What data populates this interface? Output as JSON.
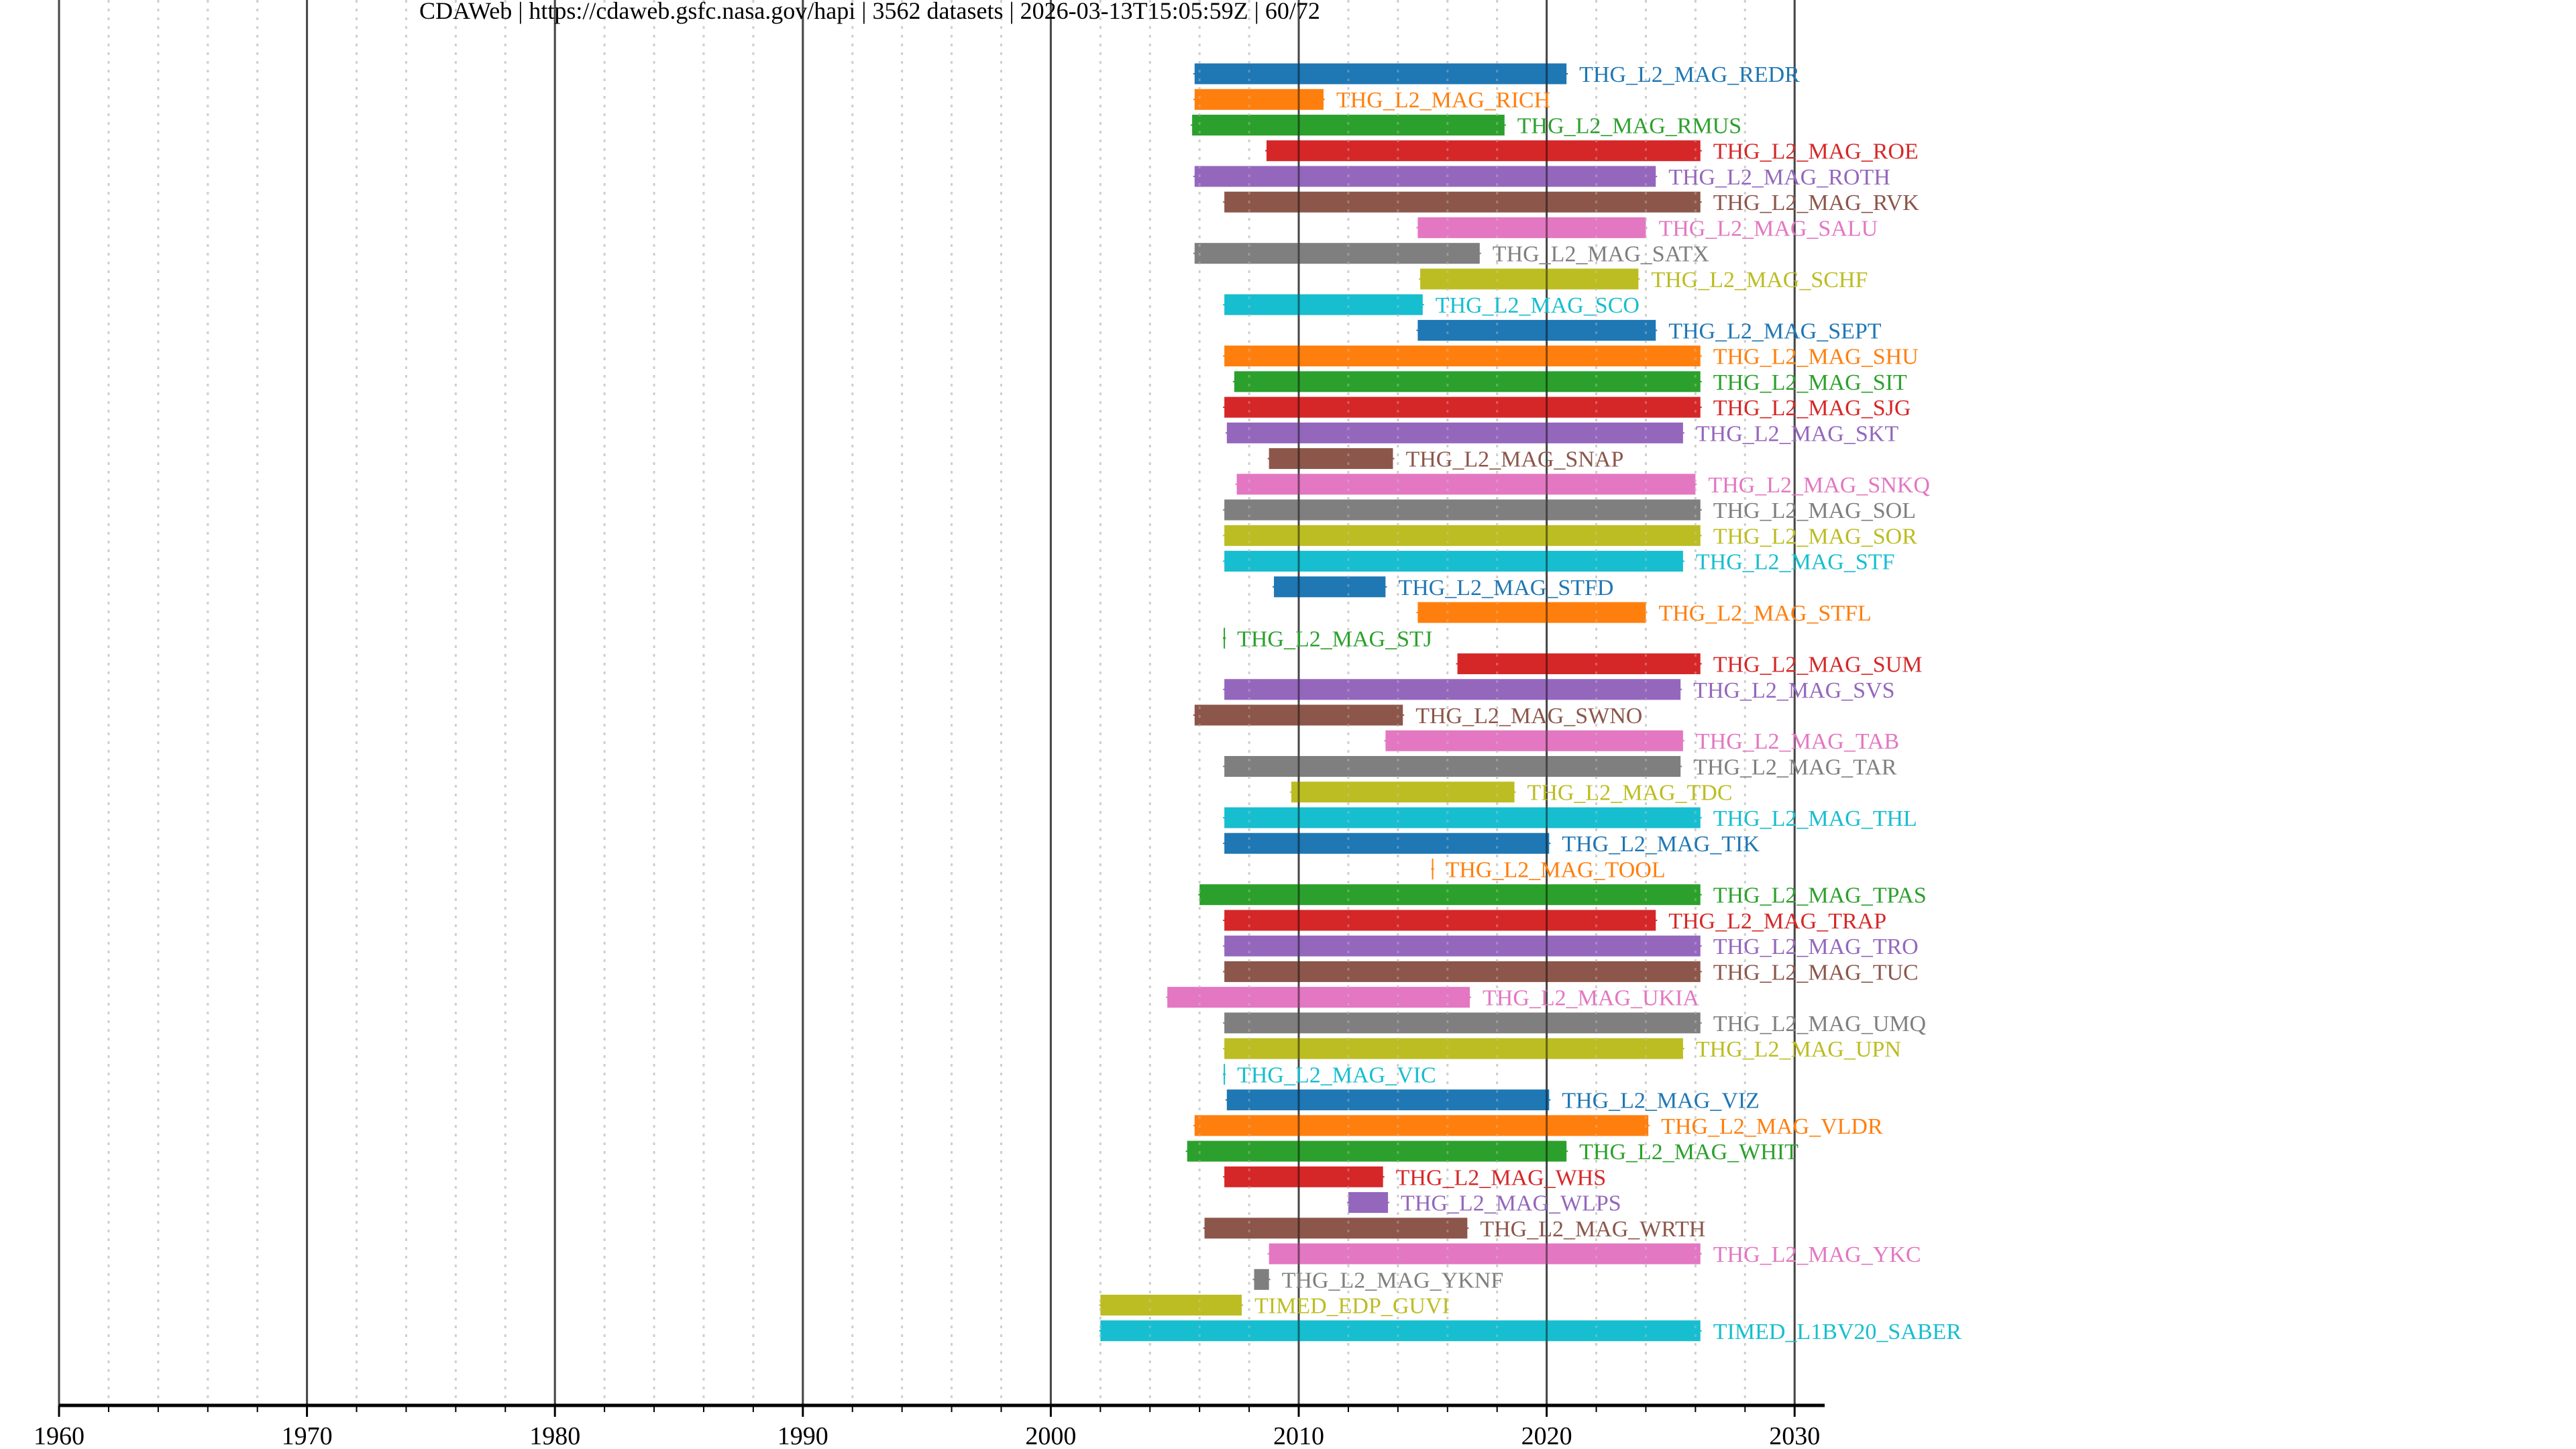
{
  "chart_data": {
    "type": "timeline",
    "title": "CDAWeb | https://cdaweb.gsfc.nasa.gov/hapi | 3562 datasets | 2026-03-13T15:05:59Z | 60/72",
    "xlabel": "",
    "ylabel": "",
    "xlim": [
      1960,
      2031
    ],
    "x_ticks": [
      1960,
      1970,
      1980,
      1990,
      2000,
      2010,
      2020,
      2030
    ],
    "x_tick_labels": [
      "1960",
      "1970",
      "1980",
      "1990",
      "2000",
      "2010",
      "2020",
      "2030"
    ],
    "minor_tick_step": 2,
    "grid": true,
    "palette": [
      "#1f77b4",
      "#ff7f0e",
      "#2ca02c",
      "#d62728",
      "#9467bd",
      "#8c564b",
      "#e377c2",
      "#7f7f7f",
      "#bcbd22",
      "#17becf"
    ],
    "series": [
      {
        "name": "THG_L2_MAG_REDR",
        "start": 2005.8,
        "end": 2020.8
      },
      {
        "name": "THG_L2_MAG_RICH",
        "start": 2005.8,
        "end": 2011.0
      },
      {
        "name": "THG_L2_MAG_RMUS",
        "start": 2005.7,
        "end": 2018.3
      },
      {
        "name": "THG_L2_MAG_ROE",
        "start": 2008.7,
        "end": 2026.2
      },
      {
        "name": "THG_L2_MAG_ROTH",
        "start": 2005.8,
        "end": 2024.4
      },
      {
        "name": "THG_L2_MAG_RVK",
        "start": 2007.0,
        "end": 2026.2
      },
      {
        "name": "THG_L2_MAG_SALU",
        "start": 2014.8,
        "end": 2024.0
      },
      {
        "name": "THG_L2_MAG_SATX",
        "start": 2005.8,
        "end": 2017.3
      },
      {
        "name": "THG_L2_MAG_SCHF",
        "start": 2014.9,
        "end": 2023.7
      },
      {
        "name": "THG_L2_MAG_SCO",
        "start": 2007.0,
        "end": 2015.0
      },
      {
        "name": "THG_L2_MAG_SEPT",
        "start": 2014.8,
        "end": 2024.4
      },
      {
        "name": "THG_L2_MAG_SHU",
        "start": 2007.0,
        "end": 2026.2
      },
      {
        "name": "THG_L2_MAG_SIT",
        "start": 2007.4,
        "end": 2026.2
      },
      {
        "name": "THG_L2_MAG_SJG",
        "start": 2007.0,
        "end": 2026.2
      },
      {
        "name": "THG_L2_MAG_SKT",
        "start": 2007.1,
        "end": 2025.5
      },
      {
        "name": "THG_L2_MAG_SNAP",
        "start": 2008.8,
        "end": 2013.8
      },
      {
        "name": "THG_L2_MAG_SNKQ",
        "start": 2007.5,
        "end": 2026.0
      },
      {
        "name": "THG_L2_MAG_SOL",
        "start": 2007.0,
        "end": 2026.2
      },
      {
        "name": "THG_L2_MAG_SOR",
        "start": 2007.0,
        "end": 2026.2
      },
      {
        "name": "THG_L2_MAG_STF",
        "start": 2007.0,
        "end": 2025.5
      },
      {
        "name": "THG_L2_MAG_STFD",
        "start": 2009.0,
        "end": 2013.5
      },
      {
        "name": "THG_L2_MAG_STFL",
        "start": 2014.8,
        "end": 2024.0
      },
      {
        "name": "THG_L2_MAG_STJ",
        "start": 2007.0,
        "end": 2007.0
      },
      {
        "name": "THG_L2_MAG_SUM",
        "start": 2016.4,
        "end": 2026.2
      },
      {
        "name": "THG_L2_MAG_SVS",
        "start": 2007.0,
        "end": 2025.4
      },
      {
        "name": "THG_L2_MAG_SWNO",
        "start": 2005.8,
        "end": 2014.2
      },
      {
        "name": "THG_L2_MAG_TAB",
        "start": 2013.5,
        "end": 2025.5
      },
      {
        "name": "THG_L2_MAG_TAR",
        "start": 2007.0,
        "end": 2025.4
      },
      {
        "name": "THG_L2_MAG_TDC",
        "start": 2009.7,
        "end": 2018.7
      },
      {
        "name": "THG_L2_MAG_THL",
        "start": 2007.0,
        "end": 2026.2
      },
      {
        "name": "THG_L2_MAG_TIK",
        "start": 2007.0,
        "end": 2020.1
      },
      {
        "name": "THG_L2_MAG_TOOL",
        "start": 2015.4,
        "end": 2015.4
      },
      {
        "name": "THG_L2_MAG_TPAS",
        "start": 2006.0,
        "end": 2026.2
      },
      {
        "name": "THG_L2_MAG_TRAP",
        "start": 2007.0,
        "end": 2024.4
      },
      {
        "name": "THG_L2_MAG_TRO",
        "start": 2007.0,
        "end": 2026.2
      },
      {
        "name": "THG_L2_MAG_TUC",
        "start": 2007.0,
        "end": 2026.2
      },
      {
        "name": "THG_L2_MAG_UKIA",
        "start": 2004.7,
        "end": 2016.9
      },
      {
        "name": "THG_L2_MAG_UMQ",
        "start": 2007.0,
        "end": 2026.2
      },
      {
        "name": "THG_L2_MAG_UPN",
        "start": 2007.0,
        "end": 2025.5
      },
      {
        "name": "THG_L2_MAG_VIC",
        "start": 2007.0,
        "end": 2007.0
      },
      {
        "name": "THG_L2_MAG_VIZ",
        "start": 2007.1,
        "end": 2020.1
      },
      {
        "name": "THG_L2_MAG_VLDR",
        "start": 2005.8,
        "end": 2024.1
      },
      {
        "name": "THG_L2_MAG_WHIT",
        "start": 2005.5,
        "end": 2020.8
      },
      {
        "name": "THG_L2_MAG_WHS",
        "start": 2007.0,
        "end": 2013.4
      },
      {
        "name": "THG_L2_MAG_WLPS",
        "start": 2012.0,
        "end": 2013.6
      },
      {
        "name": "THG_L2_MAG_WRTH",
        "start": 2006.2,
        "end": 2016.8
      },
      {
        "name": "THG_L2_MAG_YKC",
        "start": 2008.8,
        "end": 2026.2
      },
      {
        "name": "THG_L2_MAG_YKNF",
        "start": 2008.2,
        "end": 2008.8
      },
      {
        "name": "TIMED_EDP_GUVI",
        "start": 2002.0,
        "end": 2007.7
      },
      {
        "name": "TIMED_L1BV20_SABER",
        "start": 2002.0,
        "end": 2026.2
      }
    ]
  }
}
